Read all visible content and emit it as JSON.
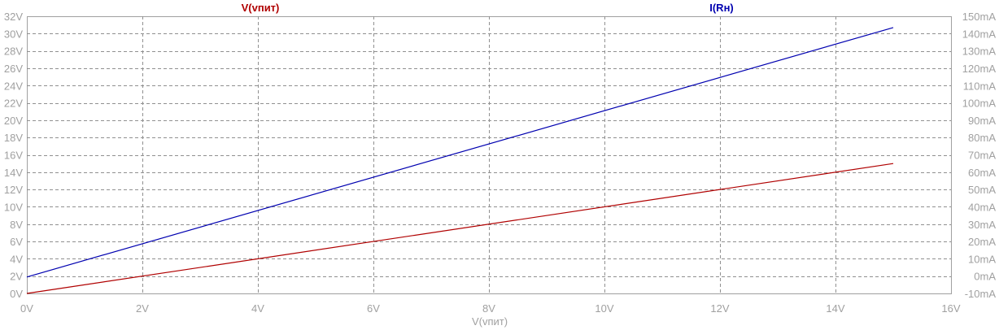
{
  "chart_data": {
    "type": "line",
    "xlabel": "V(vпит)",
    "x_ticks": [
      "0V",
      "2V",
      "4V",
      "6V",
      "8V",
      "10V",
      "12V",
      "14V",
      "16V"
    ],
    "xlim": [
      0,
      16
    ],
    "y_left_ticks": [
      "0V",
      "2V",
      "4V",
      "6V",
      "8V",
      "10V",
      "12V",
      "14V",
      "16V",
      "18V",
      "20V",
      "22V",
      "24V",
      "26V",
      "28V",
      "30V",
      "32V"
    ],
    "ylim_left": [
      0,
      32
    ],
    "y_right_ticks": [
      "-10mA",
      "0mA",
      "10mA",
      "20mA",
      "30mA",
      "40mA",
      "50mA",
      "60mA",
      "70mA",
      "80mA",
      "90mA",
      "100mA",
      "110mA",
      "120mA",
      "130mA",
      "140mA",
      "150mA"
    ],
    "ylim_right": [
      -10,
      150
    ],
    "grid": true,
    "series": [
      {
        "name": "V(vпит)",
        "axis": "left",
        "color": "#b00000",
        "x": [
          0,
          15
        ],
        "y": [
          0,
          15
        ]
      },
      {
        "name": "I(Rн)",
        "axis": "right",
        "color": "#0000b0",
        "x": [
          0,
          15
        ],
        "y": [
          -0.5,
          143.5
        ]
      }
    ]
  }
}
